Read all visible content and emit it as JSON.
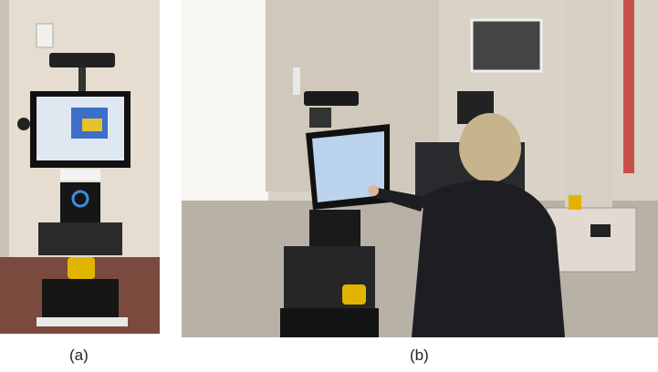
{
  "captions": {
    "a": "(a)",
    "b": "(b)"
  },
  "colors": {
    "wall": "#dcd5c8",
    "floor_a": "#7a4a3e",
    "robot_black": "#1a1a1a",
    "robot_yellow": "#e2b400",
    "screen_blue": "#bcd3ee",
    "person_dark": "#1e1e22"
  },
  "scene": {
    "panel_a": [
      "robot-figure",
      "monitor-figure",
      "camera-sensor",
      "base-platform"
    ],
    "panel_b": [
      "room-window",
      "robot-figure",
      "touch-screen",
      "seated-person",
      "side-table",
      "chair"
    ]
  }
}
